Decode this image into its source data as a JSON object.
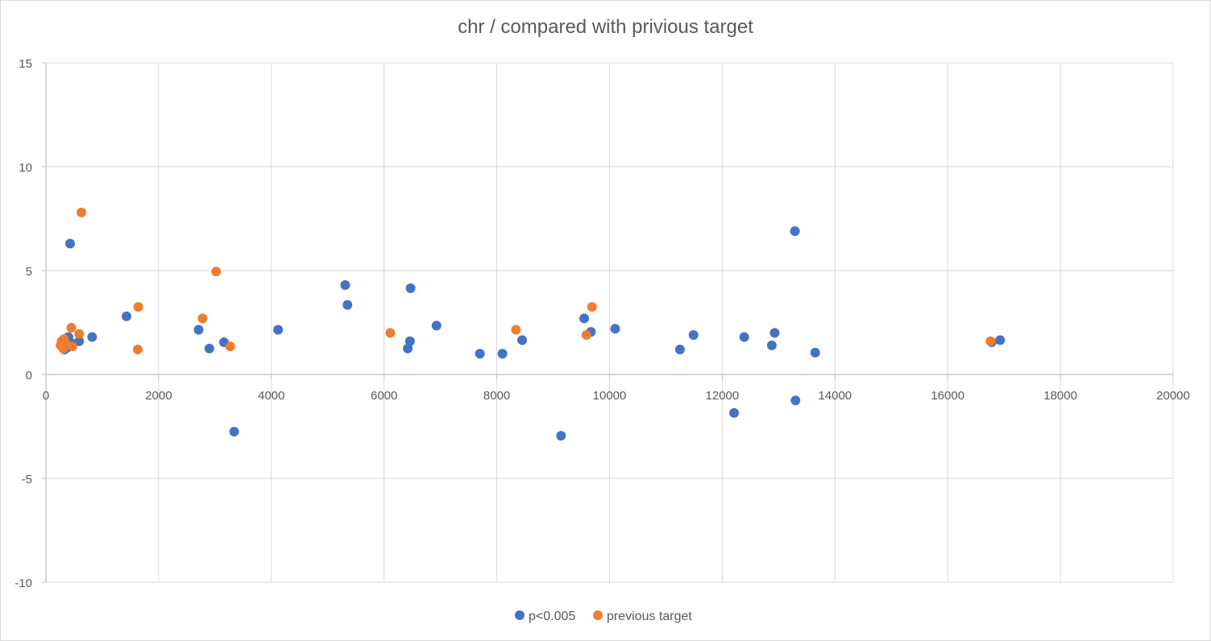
{
  "chart_data": {
    "type": "scatter",
    "title": "chr / compared with privious target",
    "xlabel": "",
    "ylabel": "",
    "xlim": [
      0,
      20000
    ],
    "ylim": [
      -10,
      15
    ],
    "x_ticks": [
      0,
      2000,
      4000,
      6000,
      8000,
      10000,
      12000,
      14000,
      16000,
      18000,
      20000
    ],
    "y_ticks": [
      -10,
      -5,
      0,
      5,
      10,
      15
    ],
    "grid": true,
    "legend_position": "bottom",
    "series": [
      {
        "name": "p<0.005",
        "color": "#4472c4",
        "points": [
          [
            330,
            1.2
          ],
          [
            380,
            1.3
          ],
          [
            400,
            1.8
          ],
          [
            430,
            6.3
          ],
          [
            450,
            1.5
          ],
          [
            590,
            1.6
          ],
          [
            820,
            1.8
          ],
          [
            1430,
            2.8
          ],
          [
            2710,
            2.15
          ],
          [
            2900,
            1.25
          ],
          [
            3160,
            1.55
          ],
          [
            3340,
            -2.75
          ],
          [
            4120,
            2.15
          ],
          [
            5310,
            4.3
          ],
          [
            5350,
            3.35
          ],
          [
            6420,
            1.25
          ],
          [
            6460,
            1.6
          ],
          [
            6470,
            4.15
          ],
          [
            6930,
            2.35
          ],
          [
            7700,
            1.0
          ],
          [
            8100,
            1.0
          ],
          [
            8450,
            1.65
          ],
          [
            9140,
            -2.95
          ],
          [
            9550,
            2.7
          ],
          [
            9670,
            2.05
          ],
          [
            10100,
            2.2
          ],
          [
            11250,
            1.2
          ],
          [
            11490,
            1.9
          ],
          [
            12210,
            -1.85
          ],
          [
            12390,
            1.8
          ],
          [
            12880,
            1.4
          ],
          [
            12930,
            2.0
          ],
          [
            13290,
            6.9
          ],
          [
            13300,
            -1.25
          ],
          [
            13650,
            1.05
          ],
          [
            16780,
            1.55
          ],
          [
            16930,
            1.65
          ]
        ]
      },
      {
        "name": "previous target",
        "color": "#ed7d31",
        "points": [
          [
            260,
            1.4
          ],
          [
            280,
            1.6
          ],
          [
            300,
            1.55
          ],
          [
            310,
            1.25
          ],
          [
            320,
            1.7
          ],
          [
            350,
            1.5
          ],
          [
            450,
            2.25
          ],
          [
            470,
            1.35
          ],
          [
            590,
            1.95
          ],
          [
            630,
            7.8
          ],
          [
            1630,
            1.2
          ],
          [
            1640,
            3.25
          ],
          [
            2780,
            2.7
          ],
          [
            3020,
            4.95
          ],
          [
            3270,
            1.35
          ],
          [
            6110,
            2.0
          ],
          [
            8340,
            2.15
          ],
          [
            9590,
            1.9
          ],
          [
            9690,
            3.25
          ],
          [
            16760,
            1.6
          ]
        ]
      }
    ]
  }
}
